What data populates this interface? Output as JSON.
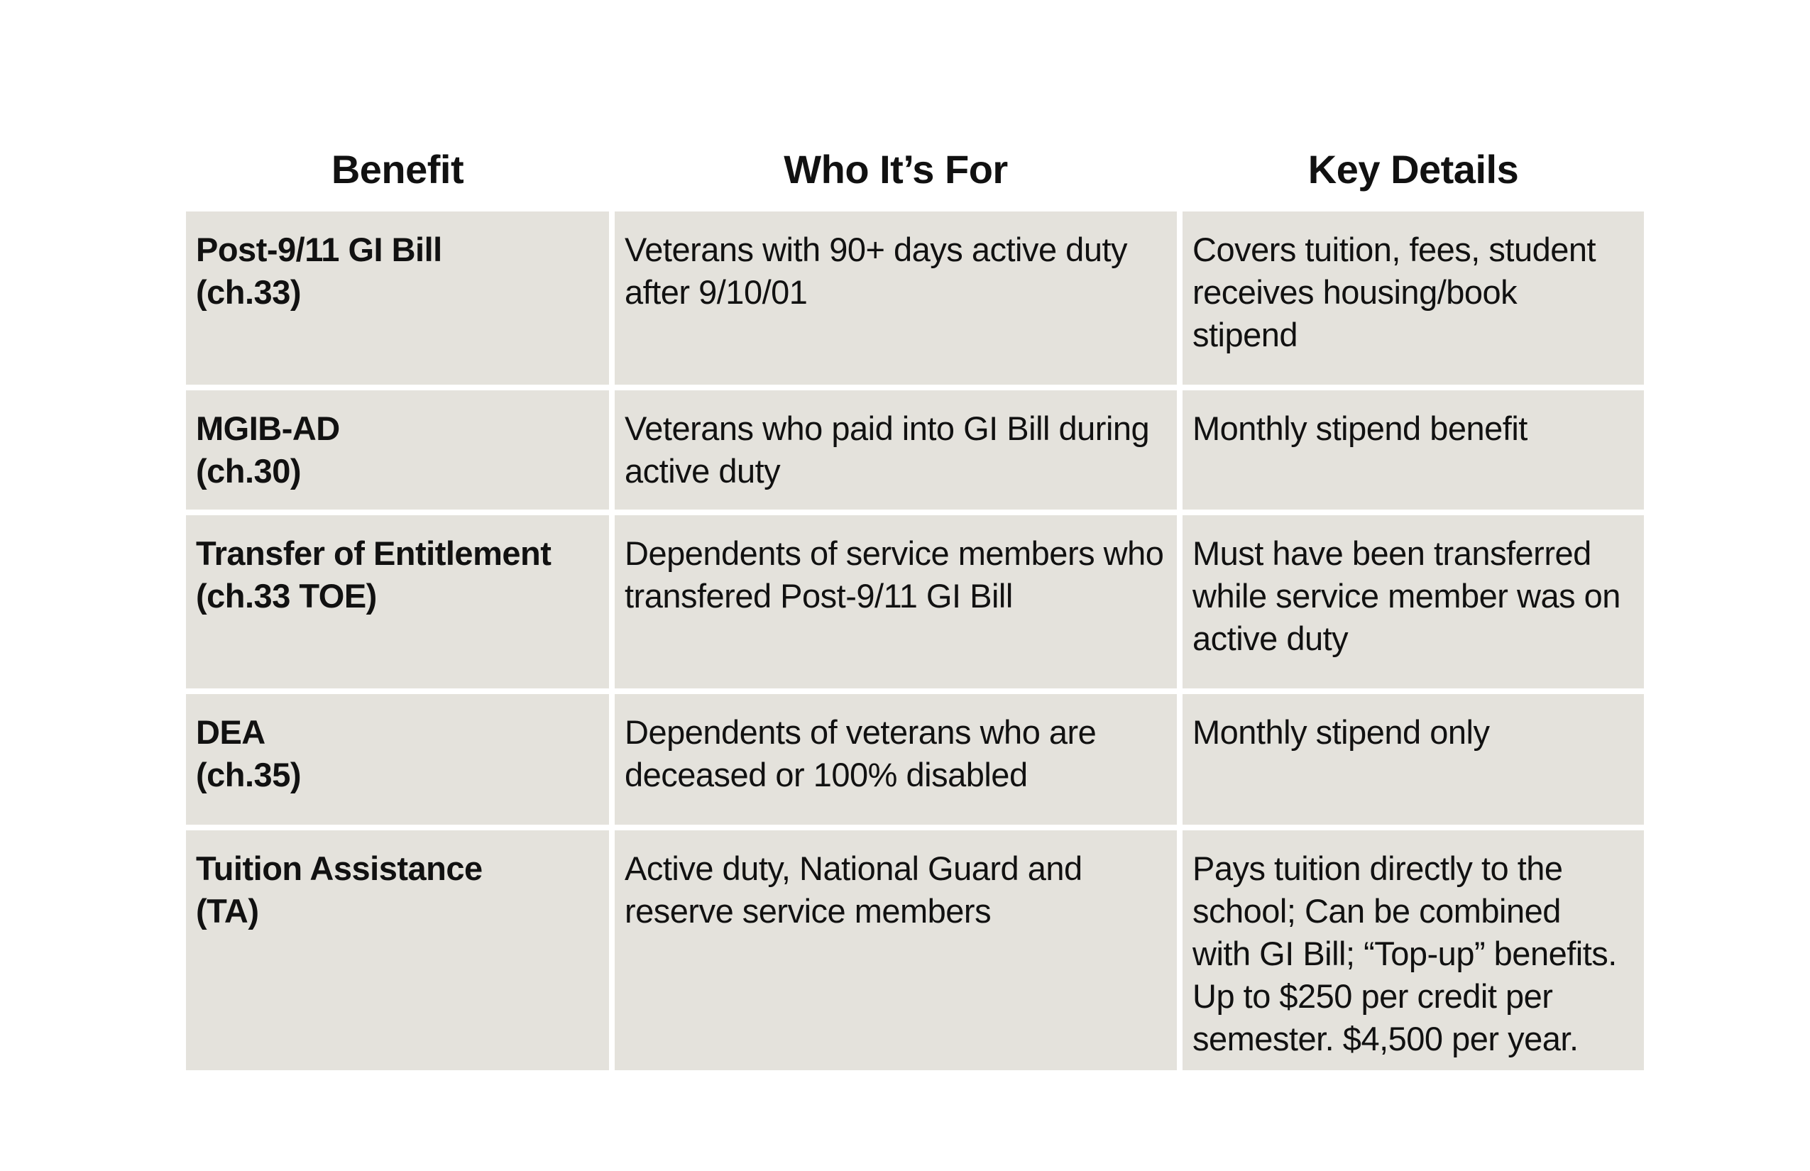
{
  "table": {
    "headers": [
      "Benefit",
      "Who It’s For",
      "Key Details"
    ],
    "rows": [
      {
        "benefit": [
          "Post-9/11 GI Bill",
          "(ch.33)"
        ],
        "who": [
          "Veterans with 90+ days active duty",
          "after 9/10/01"
        ],
        "details": [
          "Covers tuition, fees, student",
          "receives housing/book",
          "stipend"
        ]
      },
      {
        "benefit": [
          "MGIB-AD",
          "(ch.30)"
        ],
        "who": [
          "Veterans who paid into GI Bill during",
          "active duty"
        ],
        "details": [
          "Monthly stipend benefit"
        ]
      },
      {
        "benefit": [
          "Transfer of Entitlement",
          "(ch.33 TOE)"
        ],
        "who": [
          "Dependents of service members who",
          "transfered Post-9/11 GI Bill"
        ],
        "details": [
          "Must have been transferred",
          "while service member was on",
          "active duty"
        ]
      },
      {
        "benefit": [
          "DEA",
          "(ch.35)"
        ],
        "who": [
          "Dependents of veterans who are",
          "deceased or 100% disabled"
        ],
        "details": [
          "Monthly stipend only"
        ]
      },
      {
        "benefit": [
          "Tuition Assistance",
          "(TA)"
        ],
        "who": [
          "Active duty, National Guard and",
          "reserve service members"
        ],
        "details": [
          "Pays tuition directly to the",
          "school; Can be combined",
          "with GI Bill; “Top-up” benefits.",
          "Up to $250 per credit per",
          "semester. $4,500 per year."
        ]
      }
    ]
  }
}
